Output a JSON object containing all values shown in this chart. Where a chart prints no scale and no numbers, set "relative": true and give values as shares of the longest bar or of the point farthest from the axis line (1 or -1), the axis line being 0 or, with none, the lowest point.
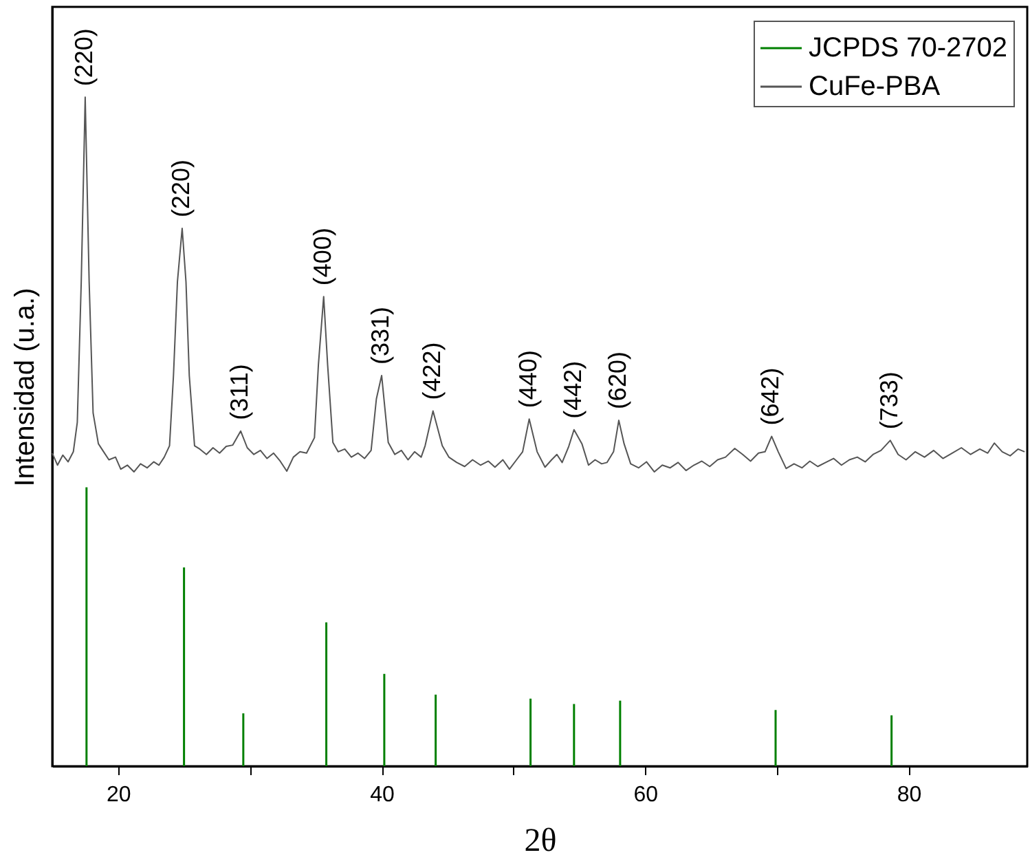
{
  "chart_data": {
    "type": "line",
    "xlabel": "2θ",
    "ylabel": "Intensidad (u.a.)",
    "relative": true,
    "xlim": [
      15,
      89
    ],
    "xticks": [
      20,
      {
        "value": 30,
        "label": null
      },
      40,
      {
        "value": 50,
        "label": null
      },
      60,
      {
        "value": 70,
        "label": null
      },
      80
    ],
    "legend": "top right",
    "grid": false,
    "marker": "none",
    "line_style": "solid",
    "series": [
      {
        "name": "JCPDS 70-2702",
        "type": "bar",
        "color": "#008000",
        "x": [
          17.6,
          25.0,
          29.5,
          35.8,
          40.2,
          44.1,
          51.3,
          54.6,
          58.1,
          69.9,
          78.7
        ],
        "values": [
          0.417,
          0.297,
          0.079,
          0.215,
          0.138,
          0.107,
          0.101,
          0.093,
          0.098,
          0.084,
          0.076
        ]
      },
      {
        "name": "CuFe-PBA",
        "color": "#555555",
        "x": [
          15.0,
          15.4,
          15.8,
          16.2,
          16.6,
          16.9,
          17.2,
          17.5,
          17.8,
          18.1,
          18.5,
          18.9,
          19.3,
          19.8,
          20.2,
          20.7,
          21.2,
          21.7,
          22.2,
          22.7,
          23.1,
          23.5,
          23.9,
          24.2,
          24.5,
          24.86,
          25.15,
          25.4,
          25.8,
          26.2,
          26.7,
          27.2,
          27.7,
          28.2,
          28.7,
          29.3,
          29.8,
          30.3,
          30.8,
          31.3,
          31.8,
          32.3,
          32.8,
          33.3,
          33.8,
          34.3,
          34.9,
          35.2,
          35.6,
          35.9,
          36.3,
          36.7,
          37.2,
          37.7,
          38.2,
          38.7,
          39.2,
          39.6,
          40.0,
          40.5,
          41.0,
          41.5,
          42.0,
          42.5,
          43.0,
          43.3,
          43.9,
          44.6,
          45.1,
          45.7,
          46.3,
          46.9,
          47.5,
          48.1,
          48.6,
          49.2,
          49.7,
          50.2,
          50.7,
          51.2,
          51.8,
          52.4,
          52.9,
          53.3,
          53.7,
          54.2,
          54.6,
          55.2,
          55.7,
          56.2,
          56.7,
          57.1,
          57.6,
          58.0,
          58.4,
          58.9,
          59.5,
          60.1,
          60.7,
          61.3,
          61.9,
          62.5,
          63.1,
          63.7,
          64.3,
          64.9,
          65.5,
          66.1,
          66.8,
          67.4,
          68.0,
          68.6,
          69.1,
          69.6,
          70.1,
          70.7,
          71.3,
          71.9,
          72.5,
          73.1,
          73.7,
          74.3,
          74.9,
          75.5,
          76.1,
          76.7,
          77.3,
          77.9,
          78.6,
          79.2,
          79.8,
          80.5,
          81.2,
          81.9,
          82.6,
          83.3,
          84.0,
          84.7,
          85.4,
          86.0,
          86.5,
          87.1,
          87.7,
          88.3,
          88.8
        ],
        "values": [
          0.468,
          0.45,
          0.465,
          0.455,
          0.47,
          0.514,
          0.724,
          1.0,
          0.724,
          0.528,
          0.482,
          0.47,
          0.458,
          0.462,
          0.444,
          0.45,
          0.44,
          0.452,
          0.446,
          0.455,
          0.45,
          0.462,
          0.479,
          0.584,
          0.724,
          0.804,
          0.724,
          0.584,
          0.479,
          0.474,
          0.466,
          0.476,
          0.468,
          0.478,
          0.48,
          0.501,
          0.476,
          0.466,
          0.472,
          0.46,
          0.468,
          0.456,
          0.441,
          0.462,
          0.47,
          0.468,
          0.491,
          0.6,
          0.702,
          0.6,
          0.484,
          0.47,
          0.474,
          0.462,
          0.468,
          0.46,
          0.472,
          0.549,
          0.584,
          0.484,
          0.466,
          0.472,
          0.458,
          0.47,
          0.462,
          0.479,
          0.531,
          0.479,
          0.462,
          0.454,
          0.448,
          0.458,
          0.45,
          0.456,
          0.447,
          0.458,
          0.444,
          0.457,
          0.47,
          0.519,
          0.47,
          0.447,
          0.458,
          0.466,
          0.454,
          0.478,
          0.503,
          0.482,
          0.45,
          0.458,
          0.452,
          0.454,
          0.47,
          0.517,
          0.482,
          0.452,
          0.446,
          0.455,
          0.44,
          0.45,
          0.446,
          0.454,
          0.442,
          0.45,
          0.456,
          0.448,
          0.458,
          0.462,
          0.475,
          0.466,
          0.456,
          0.468,
          0.47,
          0.493,
          0.47,
          0.445,
          0.452,
          0.446,
          0.456,
          0.448,
          0.454,
          0.46,
          0.45,
          0.458,
          0.462,
          0.455,
          0.466,
          0.472,
          0.487,
          0.466,
          0.458,
          0.47,
          0.462,
          0.472,
          0.46,
          0.468,
          0.476,
          0.466,
          0.474,
          0.468,
          0.483,
          0.47,
          0.464,
          0.474,
          0.47
        ]
      }
    ],
    "annotations": [
      {
        "text": "(220)",
        "x": 17.5,
        "y": 1.0
      },
      {
        "text": "(220)",
        "x": 24.86,
        "y": 0.804
      },
      {
        "text": "(311)",
        "x": 29.3,
        "y": 0.501
      },
      {
        "text": "(400)",
        "x": 35.6,
        "y": 0.702
      },
      {
        "text": "(331)",
        "x": 40.0,
        "y": 0.584
      },
      {
        "text": "(422)",
        "x": 43.9,
        "y": 0.531
      },
      {
        "text": "(440)",
        "x": 51.2,
        "y": 0.519
      },
      {
        "text": "(442)",
        "x": 54.6,
        "y": 0.503
      },
      {
        "text": "(620)",
        "x": 58.0,
        "y": 0.517
      },
      {
        "text": "(642)",
        "x": 69.6,
        "y": 0.493
      },
      {
        "text": "(733)",
        "x": 78.6,
        "y": 0.487
      }
    ]
  }
}
